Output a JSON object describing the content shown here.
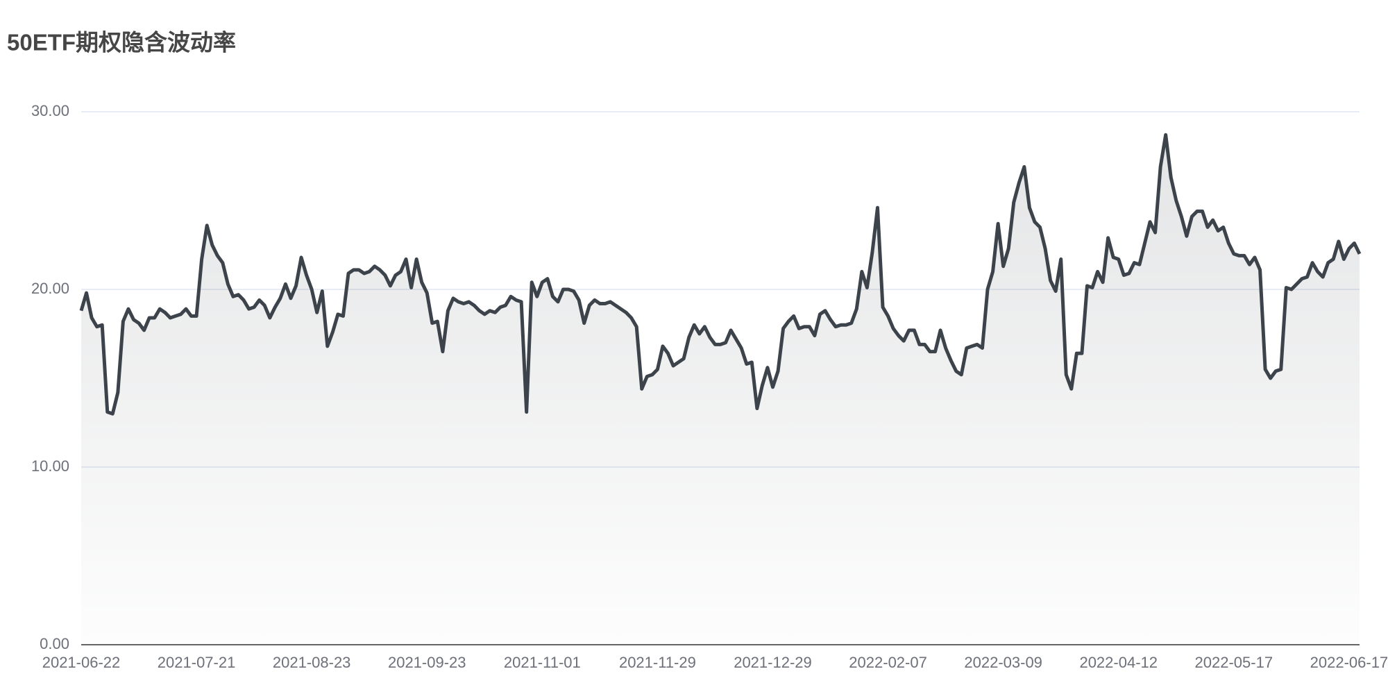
{
  "chart_data": {
    "type": "line",
    "title": "50ETF期权隐含波动率",
    "categories": [
      "2021-06-22",
      null,
      null,
      null,
      null,
      null,
      null,
      null,
      null,
      null,
      null,
      null,
      null,
      null,
      null,
      null,
      null,
      null,
      null,
      null,
      null,
      null,
      "2021-07-21",
      null,
      null,
      null,
      null,
      null,
      null,
      null,
      null,
      null,
      null,
      null,
      null,
      null,
      null,
      null,
      null,
      null,
      null,
      null,
      null,
      null,
      "2021-08-23",
      null,
      null,
      null,
      null,
      null,
      null,
      null,
      null,
      null,
      null,
      null,
      null,
      null,
      null,
      null,
      null,
      null,
      null,
      null,
      null,
      null,
      "2021-09-23",
      null,
      null,
      null,
      null,
      null,
      null,
      null,
      null,
      null,
      null,
      null,
      null,
      null,
      null,
      null,
      null,
      null,
      null,
      null,
      null,
      null,
      "2021-11-01",
      null,
      null,
      null,
      null,
      null,
      null,
      null,
      null,
      null,
      null,
      null,
      null,
      null,
      null,
      null,
      null,
      null,
      null,
      null,
      null,
      null,
      "2021-11-29",
      null,
      null,
      null,
      null,
      null,
      null,
      null,
      null,
      null,
      null,
      null,
      null,
      null,
      null,
      null,
      null,
      null,
      null,
      null,
      null,
      null,
      "2021-12-29",
      null,
      null,
      null,
      null,
      null,
      null,
      null,
      null,
      null,
      null,
      null,
      null,
      null,
      null,
      null,
      null,
      null,
      null,
      null,
      null,
      null,
      "2022-02-07",
      null,
      null,
      null,
      null,
      null,
      null,
      null,
      null,
      null,
      null,
      null,
      null,
      null,
      null,
      null,
      null,
      null,
      null,
      null,
      null,
      null,
      "2022-03-09",
      null,
      null,
      null,
      null,
      null,
      null,
      null,
      null,
      null,
      null,
      null,
      null,
      null,
      null,
      null,
      null,
      null,
      null,
      null,
      null,
      null,
      "2022-04-12",
      null,
      null,
      null,
      null,
      null,
      null,
      null,
      null,
      null,
      null,
      null,
      null,
      null,
      null,
      null,
      null,
      null,
      null,
      null,
      null,
      null,
      "2022-05-17",
      null,
      null,
      null,
      null,
      null,
      null,
      null,
      null,
      null,
      null,
      null,
      null,
      null,
      null,
      null,
      null,
      null,
      null,
      null,
      null,
      null,
      "2022-06-17",
      null,
      null
    ],
    "values": [
      18.8,
      19.8,
      18.4,
      17.9,
      18.0,
      13.1,
      13.0,
      14.2,
      18.2,
      18.9,
      18.3,
      18.1,
      17.7,
      18.4,
      18.4,
      18.9,
      18.7,
      18.4,
      18.5,
      18.6,
      18.9,
      18.5,
      18.5,
      21.7,
      23.6,
      22.5,
      21.9,
      21.5,
      20.3,
      19.6,
      19.7,
      19.4,
      18.9,
      19.0,
      19.4,
      19.1,
      18.4,
      19.0,
      19.5,
      20.3,
      19.5,
      20.2,
      21.8,
      20.8,
      20.0,
      18.7,
      19.9,
      16.8,
      17.6,
      18.6,
      18.5,
      20.9,
      21.1,
      21.1,
      20.9,
      21.0,
      21.3,
      21.1,
      20.8,
      20.2,
      20.8,
      21.0,
      21.7,
      20.1,
      21.7,
      20.4,
      19.8,
      18.1,
      18.2,
      16.5,
      18.8,
      19.5,
      19.3,
      19.2,
      19.3,
      19.1,
      18.8,
      18.6,
      18.8,
      18.7,
      19.0,
      19.1,
      19.6,
      19.4,
      19.3,
      13.1,
      20.4,
      19.6,
      20.4,
      20.6,
      19.6,
      19.3,
      20.0,
      20.0,
      19.9,
      19.4,
      18.1,
      19.1,
      19.4,
      19.2,
      19.2,
      19.3,
      19.1,
      18.9,
      18.7,
      18.4,
      17.9,
      14.4,
      15.1,
      15.2,
      15.5,
      16.8,
      16.4,
      15.7,
      15.9,
      16.1,
      17.3,
      18.0,
      17.5,
      17.9,
      17.3,
      16.9,
      16.9,
      17.0,
      17.7,
      17.2,
      16.7,
      15.8,
      15.9,
      13.3,
      14.6,
      15.6,
      14.5,
      15.4,
      17.8,
      18.2,
      18.5,
      17.8,
      17.9,
      17.9,
      17.4,
      18.6,
      18.8,
      18.3,
      17.9,
      18.0,
      18.0,
      18.1,
      18.9,
      21.0,
      20.1,
      22.1,
      24.6,
      19.0,
      18.5,
      17.8,
      17.4,
      17.1,
      17.7,
      17.7,
      16.9,
      16.9,
      16.5,
      16.5,
      17.7,
      16.7,
      16.0,
      15.4,
      15.2,
      16.7,
      16.8,
      16.9,
      16.7,
      20.0,
      21.0,
      23.7,
      21.3,
      22.3,
      24.9,
      26.0,
      26.9,
      24.6,
      23.8,
      23.5,
      22.3,
      20.5,
      19.9,
      21.7,
      15.2,
      14.4,
      16.4,
      16.4,
      20.2,
      20.1,
      21.0,
      20.4,
      22.9,
      21.8,
      21.7,
      20.8,
      20.9,
      21.5,
      21.4,
      22.6,
      23.8,
      23.2,
      26.9,
      28.7,
      26.3,
      25.0,
      24.1,
      23.0,
      24.1,
      24.4,
      24.4,
      23.5,
      23.9,
      23.3,
      23.5,
      22.6,
      22.0,
      21.9,
      21.9,
      21.4,
      21.8,
      21.1,
      15.5,
      15.0,
      15.4,
      15.5,
      20.1,
      20.0,
      20.3,
      20.6,
      20.7,
      21.5,
      21.0,
      20.7,
      21.5,
      21.7,
      22.7,
      21.7,
      22.3,
      22.6,
      22.0
    ],
    "color": "#3d434b",
    "area": true,
    "ylim": [
      0,
      30
    ],
    "yticks": [
      {
        "value": 0,
        "label": "0.00"
      },
      {
        "value": 10,
        "label": "10.00"
      },
      {
        "value": 20,
        "label": "20.00"
      },
      {
        "value": 30,
        "label": "30.00"
      }
    ],
    "grid": true
  }
}
